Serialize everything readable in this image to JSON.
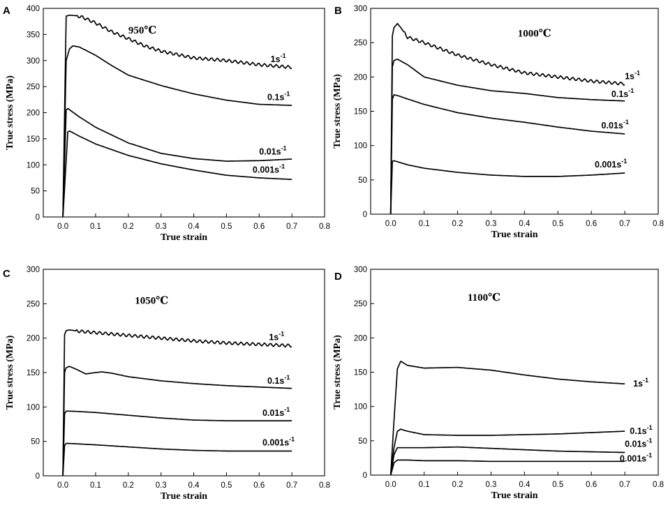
{
  "figure": {
    "axes_common": {
      "x_ticks": [
        0.0,
        0.1,
        0.2,
        0.3,
        0.4,
        0.5,
        0.6,
        0.7,
        0.8
      ],
      "x_tick_labels": [
        "0.0",
        "0.1",
        "0.2",
        "0.3",
        "0.4",
        "0.5",
        "0.6",
        "0.7",
        "0.8"
      ],
      "xlim": [
        -0.06,
        0.8
      ]
    }
  },
  "chart_data": [
    {
      "panel": "A",
      "type": "line",
      "title": "950℃",
      "xlabel": "True strain",
      "ylabel": "True stress (MPa)",
      "xlim": [
        -0.06,
        0.8
      ],
      "ylim": [
        0,
        400
      ],
      "y_ticks": [
        0,
        50,
        100,
        150,
        200,
        250,
        300,
        350,
        400
      ],
      "wavy": [
        true,
        false,
        false,
        false
      ],
      "series": [
        {
          "name": "1s",
          "sup": "-1",
          "x": [
            0,
            0.01,
            0.02,
            0.04,
            0.06,
            0.1,
            0.15,
            0.2,
            0.25,
            0.3,
            0.4,
            0.5,
            0.6,
            0.7
          ],
          "y": [
            0,
            385,
            387,
            386,
            383,
            372,
            355,
            342,
            328,
            318,
            305,
            300,
            292,
            287
          ]
        },
        {
          "name": "0.1s",
          "sup": "-1",
          "x": [
            0,
            0.01,
            0.02,
            0.03,
            0.05,
            0.1,
            0.15,
            0.2,
            0.3,
            0.4,
            0.5,
            0.6,
            0.7
          ],
          "y": [
            0,
            300,
            322,
            328,
            326,
            310,
            290,
            272,
            252,
            236,
            224,
            216,
            214
          ]
        },
        {
          "name": "0.01s",
          "sup": "-1",
          "x": [
            0,
            0.01,
            0.015,
            0.05,
            0.1,
            0.2,
            0.3,
            0.4,
            0.5,
            0.6,
            0.7
          ],
          "y": [
            0,
            205,
            208,
            192,
            172,
            142,
            122,
            112,
            107,
            108,
            111
          ]
        },
        {
          "name": "0.001s",
          "sup": "-1",
          "x": [
            0,
            0.015,
            0.02,
            0.05,
            0.1,
            0.2,
            0.3,
            0.4,
            0.5,
            0.6,
            0.7
          ],
          "y": [
            0,
            163,
            165,
            155,
            140,
            118,
            102,
            90,
            80,
            75,
            72
          ]
        }
      ],
      "annotations": [
        {
          "text": "1s",
          "sup": "-1",
          "x": 0.635,
          "y": 297
        },
        {
          "text": "0.1s",
          "sup": "-1",
          "x": 0.625,
          "y": 224
        },
        {
          "text": "0.01s",
          "sup": "-1",
          "x": 0.6,
          "y": 120
        },
        {
          "text": "0.001s",
          "sup": "-1",
          "x": 0.58,
          "y": 85
        }
      ],
      "temp_pos": {
        "x": 0.2,
        "y": 352
      }
    },
    {
      "panel": "B",
      "type": "line",
      "title": "1000℃",
      "xlabel": "True strain",
      "ylabel": "True stress (MPa)",
      "xlim": [
        -0.06,
        0.8
      ],
      "ylim": [
        0,
        300
      ],
      "y_ticks": [
        0,
        50,
        100,
        150,
        200,
        250,
        300
      ],
      "wavy": [
        true,
        false,
        false,
        false
      ],
      "series": [
        {
          "name": "1s",
          "sup": "-1",
          "x": [
            0,
            0.005,
            0.01,
            0.02,
            0.03,
            0.05,
            0.1,
            0.2,
            0.3,
            0.4,
            0.5,
            0.6,
            0.7
          ],
          "y": [
            0,
            260,
            272,
            278,
            272,
            258,
            250,
            232,
            218,
            206,
            200,
            194,
            190
          ]
        },
        {
          "name": "0.1s",
          "sup": "-1",
          "x": [
            0,
            0.005,
            0.01,
            0.02,
            0.05,
            0.1,
            0.2,
            0.3,
            0.4,
            0.5,
            0.6,
            0.7
          ],
          "y": [
            0,
            215,
            224,
            226,
            218,
            200,
            188,
            180,
            176,
            170,
            167,
            165
          ]
        },
        {
          "name": "0.01s",
          "sup": "-1",
          "x": [
            0,
            0.005,
            0.01,
            0.02,
            0.05,
            0.1,
            0.2,
            0.3,
            0.4,
            0.5,
            0.6,
            0.7
          ],
          "y": [
            0,
            168,
            174,
            173,
            168,
            160,
            148,
            140,
            134,
            127,
            121,
            117
          ]
        },
        {
          "name": "0.001s",
          "sup": "-1",
          "x": [
            0,
            0.005,
            0.01,
            0.05,
            0.1,
            0.2,
            0.3,
            0.4,
            0.5,
            0.6,
            0.7
          ],
          "y": [
            0,
            77,
            78,
            72,
            67,
            61,
            57,
            55,
            55,
            57,
            60
          ]
        }
      ],
      "annotations": [
        {
          "text": "1s",
          "sup": "-1",
          "x": 0.7,
          "y": 197
        },
        {
          "text": "0.1s",
          "sup": "-1",
          "x": 0.66,
          "y": 171
        },
        {
          "text": "0.01s",
          "sup": "-1",
          "x": 0.63,
          "y": 125
        },
        {
          "text": "0.001s",
          "sup": "-1",
          "x": 0.61,
          "y": 68
        }
      ],
      "temp_pos": {
        "x": 0.38,
        "y": 259
      }
    },
    {
      "panel": "C",
      "type": "line",
      "title": "1050℃",
      "xlabel": "True strain",
      "ylabel": "True stress (MPa)",
      "xlim": [
        -0.06,
        0.8
      ],
      "ylim": [
        0,
        300
      ],
      "y_ticks": [
        0,
        50,
        100,
        150,
        200,
        250,
        300
      ],
      "wavy": [
        true,
        false,
        false,
        false
      ],
      "series": [
        {
          "name": "1s",
          "sup": "-1",
          "x": [
            0,
            0.005,
            0.01,
            0.02,
            0.05,
            0.1,
            0.2,
            0.3,
            0.4,
            0.5,
            0.6,
            0.7
          ],
          "y": [
            0,
            205,
            211,
            212,
            210,
            208,
            204,
            200,
            196,
            193,
            191,
            189
          ]
        },
        {
          "name": "0.1s",
          "sup": "-1",
          "x": [
            0,
            0.005,
            0.01,
            0.02,
            0.04,
            0.07,
            0.1,
            0.12,
            0.15,
            0.2,
            0.3,
            0.4,
            0.5,
            0.6,
            0.7
          ],
          "y": [
            0,
            150,
            157,
            159,
            155,
            148,
            150,
            151,
            149,
            144,
            138,
            134,
            131,
            129,
            127
          ]
        },
        {
          "name": "0.01s",
          "sup": "-1",
          "x": [
            0,
            0.005,
            0.01,
            0.02,
            0.1,
            0.2,
            0.3,
            0.4,
            0.5,
            0.6,
            0.7
          ],
          "y": [
            0,
            90,
            94,
            94,
            92,
            88,
            84,
            81,
            80,
            80,
            80
          ]
        },
        {
          "name": "0.001s",
          "sup": "-1",
          "x": [
            0,
            0.005,
            0.01,
            0.02,
            0.1,
            0.2,
            0.3,
            0.4,
            0.5,
            0.6,
            0.7
          ],
          "y": [
            0,
            44,
            47,
            47,
            45,
            42,
            39,
            37,
            36,
            36,
            36
          ]
        }
      ],
      "annotations": [
        {
          "text": "1s",
          "sup": "-1",
          "x": 0.63,
          "y": 197
        },
        {
          "text": "0.1s",
          "sup": "-1",
          "x": 0.625,
          "y": 134
        },
        {
          "text": "0.01s",
          "sup": "-1",
          "x": 0.61,
          "y": 87
        },
        {
          "text": "0.001s",
          "sup": "-1",
          "x": 0.61,
          "y": 44
        }
      ],
      "temp_pos": {
        "x": 0.22,
        "y": 250
      }
    },
    {
      "panel": "D",
      "type": "line",
      "title": "1100℃",
      "xlabel": "True strain",
      "ylabel": "True stress (MPa)",
      "xlim": [
        -0.06,
        0.8
      ],
      "ylim": [
        0,
        300
      ],
      "y_ticks": [
        0,
        50,
        100,
        150,
        200,
        250,
        300
      ],
      "wavy": [
        false,
        false,
        false,
        false
      ],
      "series": [
        {
          "name": "1s",
          "sup": "-1",
          "x": [
            0,
            0.01,
            0.02,
            0.03,
            0.05,
            0.1,
            0.2,
            0.3,
            0.4,
            0.5,
            0.6,
            0.7
          ],
          "y": [
            0,
            80,
            155,
            166,
            160,
            156,
            157,
            153,
            146,
            140,
            136,
            133
          ]
        },
        {
          "name": "0.1s",
          "sup": "-1",
          "x": [
            0,
            0.01,
            0.02,
            0.03,
            0.05,
            0.1,
            0.2,
            0.3,
            0.4,
            0.5,
            0.6,
            0.7
          ],
          "y": [
            0,
            40,
            64,
            67,
            64,
            59,
            58,
            58,
            59,
            60,
            62,
            64
          ]
        },
        {
          "name": "0.01s",
          "sup": "-1",
          "x": [
            0,
            0.01,
            0.02,
            0.05,
            0.1,
            0.2,
            0.3,
            0.4,
            0.5,
            0.6,
            0.7
          ],
          "y": [
            0,
            30,
            40,
            40,
            40,
            41,
            39,
            37,
            35,
            34,
            33
          ]
        },
        {
          "name": "0.001s",
          "sup": "-1",
          "x": [
            0,
            0.01,
            0.02,
            0.05,
            0.1,
            0.2,
            0.3,
            0.4,
            0.5,
            0.6,
            0.7
          ],
          "y": [
            0,
            18,
            22,
            22,
            21,
            21,
            20,
            20,
            20,
            20,
            20
          ]
        }
      ],
      "annotations": [
        {
          "text": "1s",
          "sup": "-1",
          "x": 0.725,
          "y": 129
        },
        {
          "text": "0.1s",
          "sup": "-1",
          "x": 0.715,
          "y": 60
        },
        {
          "text": "0.01s",
          "sup": "-1",
          "x": 0.7,
          "y": 41
        },
        {
          "text": "0.001s",
          "sup": "-1",
          "x": 0.685,
          "y": 20
        }
      ],
      "temp_pos": {
        "x": 0.23,
        "y": 254
      }
    }
  ]
}
